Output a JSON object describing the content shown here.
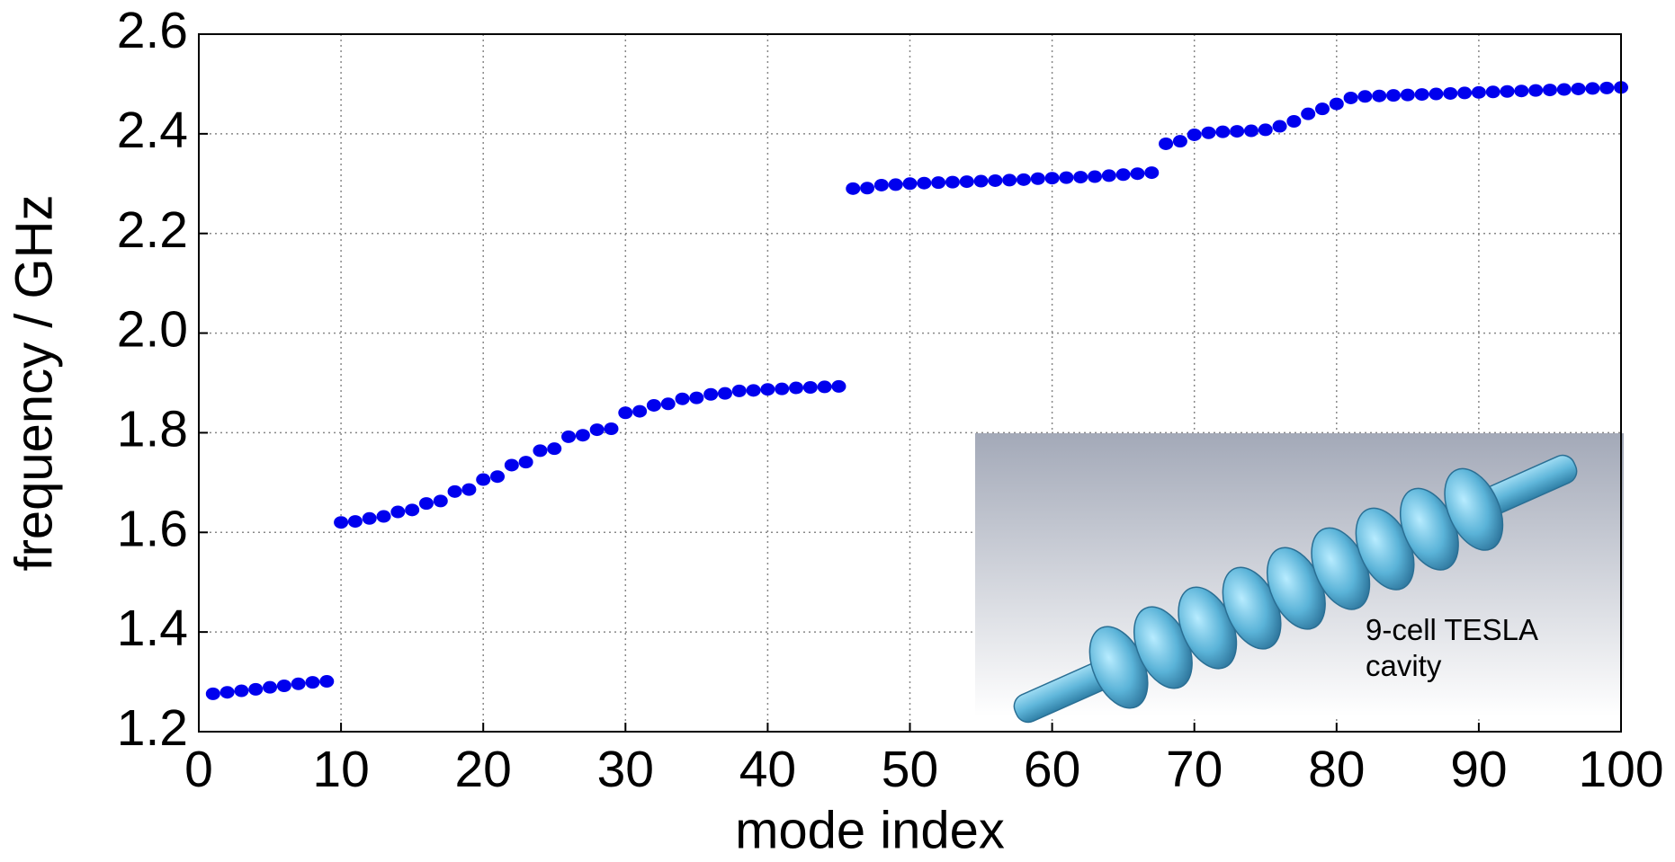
{
  "chart_data": {
    "type": "scatter",
    "xlabel": "mode index",
    "ylabel": "frequency / GHz",
    "annotation": [
      "9-cell TESLA",
      "cavity"
    ],
    "color": "#0000ee",
    "x": [
      1,
      2,
      3,
      4,
      5,
      6,
      7,
      8,
      9,
      10,
      11,
      12,
      13,
      14,
      15,
      16,
      17,
      18,
      19,
      20,
      21,
      22,
      23,
      24,
      25,
      26,
      27,
      28,
      29,
      30,
      31,
      32,
      33,
      34,
      35,
      36,
      37,
      38,
      39,
      40,
      41,
      42,
      43,
      44,
      45,
      46,
      47,
      48,
      49,
      50,
      51,
      52,
      53,
      54,
      55,
      56,
      57,
      58,
      59,
      60,
      61,
      62,
      63,
      64,
      65,
      66,
      67,
      68,
      69,
      70,
      71,
      72,
      73,
      74,
      75,
      76,
      77,
      78,
      79,
      80,
      81,
      82,
      83,
      84,
      85,
      86,
      87,
      88,
      89,
      90,
      91,
      92,
      93,
      94,
      95,
      96,
      97,
      98,
      99,
      100
    ],
    "values": [
      1.276,
      1.279,
      1.282,
      1.285,
      1.289,
      1.292,
      1.296,
      1.299,
      1.301,
      1.62,
      1.622,
      1.628,
      1.632,
      1.641,
      1.645,
      1.658,
      1.663,
      1.682,
      1.686,
      1.706,
      1.712,
      1.735,
      1.741,
      1.764,
      1.768,
      1.792,
      1.795,
      1.806,
      1.808,
      1.84,
      1.843,
      1.855,
      1.858,
      1.868,
      1.87,
      1.877,
      1.879,
      1.884,
      1.885,
      1.887,
      1.888,
      1.89,
      1.891,
      1.892,
      1.893,
      2.29,
      2.291,
      2.297,
      2.298,
      2.3,
      2.301,
      2.302,
      2.303,
      2.304,
      2.305,
      2.306,
      2.307,
      2.308,
      2.31,
      2.311,
      2.312,
      2.313,
      2.314,
      2.316,
      2.318,
      2.32,
      2.322,
      2.38,
      2.385,
      2.398,
      2.402,
      2.404,
      2.405,
      2.406,
      2.408,
      2.415,
      2.425,
      2.44,
      2.45,
      2.46,
      2.472,
      2.475,
      2.476,
      2.477,
      2.478,
      2.479,
      2.48,
      2.481,
      2.482,
      2.483,
      2.484,
      2.485,
      2.486,
      2.487,
      2.488,
      2.489,
      2.49,
      2.491,
      2.492,
      2.493
    ],
    "xlim": [
      0,
      100
    ],
    "xticks": [
      0,
      10,
      20,
      30,
      40,
      50,
      60,
      70,
      80,
      90,
      100
    ],
    "ylim": [
      1.2,
      2.6
    ],
    "yticks": [
      1.2,
      1.4,
      1.6,
      1.8,
      {
        "value": 2,
        "label": "2.0"
      },
      2.2,
      2.4,
      2.6
    ],
    "grid": true
  }
}
